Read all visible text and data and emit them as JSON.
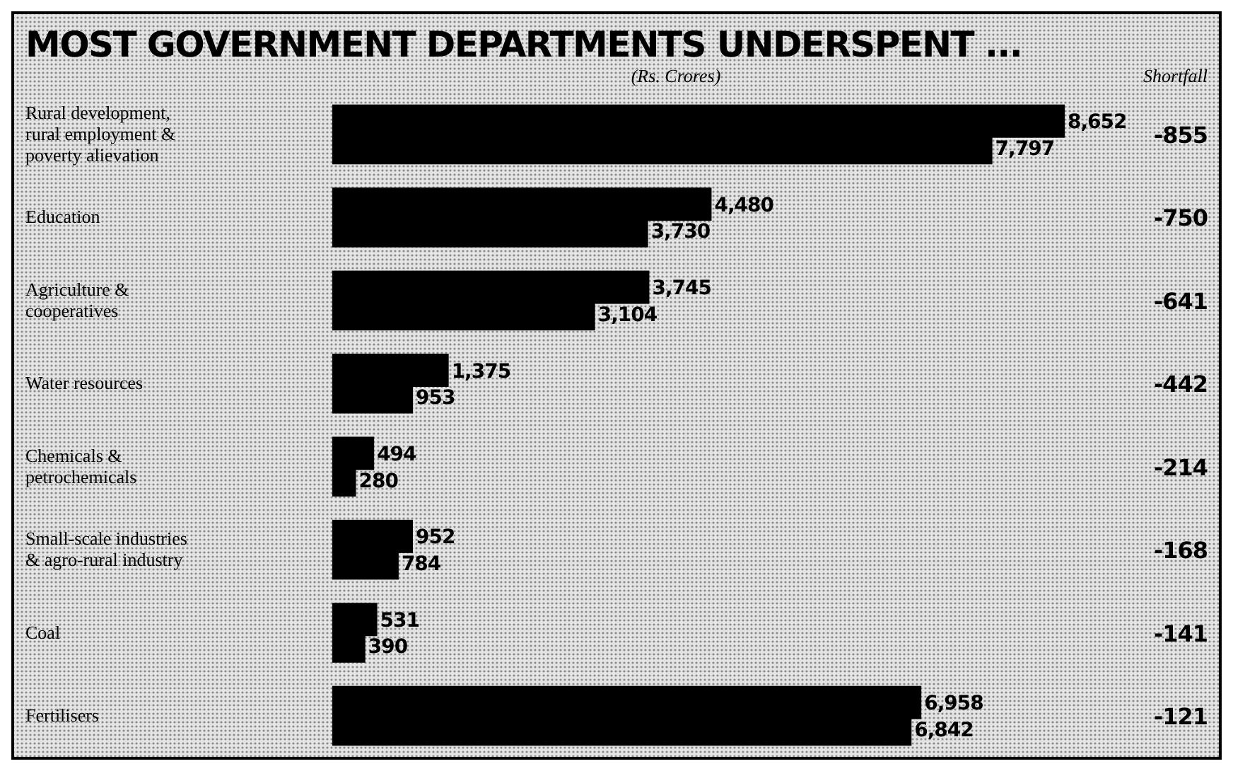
{
  "chart_data": {
    "type": "bar",
    "orientation": "horizontal",
    "title": "MOST GOVERNMENT DEPARTMENTS UNDERSPENT ...",
    "subtitle": "(Rs. Crores)",
    "categories": [
      "Rural development, rural employment & poverty alievation",
      "Education",
      "Agriculture & cooperatives",
      "Water resources",
      "Chemicals & petrochemicals",
      "Small-scale industries & agro-rural industry",
      "Coal",
      "Fertilisers"
    ],
    "series": [
      {
        "color": "#000000",
        "values": [
          8652,
          4480,
          3745,
          1375,
          494,
          952,
          531,
          6958
        ],
        "value_labels": [
          "8,652",
          "4,480",
          "3,745",
          "1,375",
          "494",
          "952",
          "531",
          "6,958"
        ]
      },
      {
        "color": "#000000",
        "values": [
          7797,
          3730,
          3104,
          953,
          280,
          784,
          390,
          6842
        ],
        "value_labels": [
          "7,797",
          "3,730",
          "3,104",
          "953",
          "280",
          "784",
          "390",
          "6,842"
        ]
      }
    ],
    "annotations": [
      "Shortfall",
      "-855",
      "-750",
      "-641",
      "-442",
      "-214",
      "-168",
      "-141",
      "-121"
    ]
  }
}
